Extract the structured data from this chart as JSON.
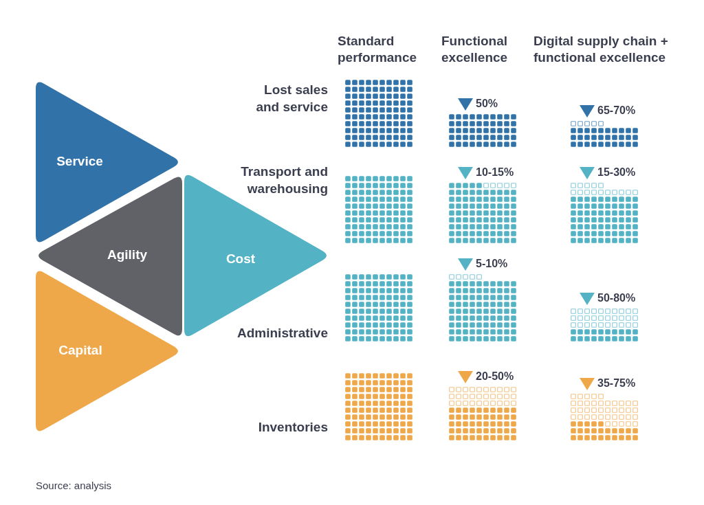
{
  "chart_data": {
    "type": "other",
    "categories": [
      "Lost sales and service",
      "Transport and warehousing",
      "Administrative",
      "Inventories"
    ],
    "series": [
      {
        "name": "Functional excellence",
        "values": [
          50,
          10,
          5,
          20
        ],
        "value_labels": [
          "50%",
          "10-",
          "5-",
          "20-"
        ],
        "colors": [
          "#3173a8",
          "#53b3c4",
          "#53b3c4",
          "#eea84a"
        ]
      },
      {
        "values": [
          null,
          15,
          10,
          50
        ],
        "value_labels": [
          null,
          "15%",
          "10%",
          "50%"
        ],
        "colors": [
          "#3173a8",
          "#53b3c4",
          "#53b3c4",
          "#eea84a"
        ]
      },
      {
        "name": "Digital supply chain + functional excellence",
        "values": [
          65,
          15,
          50,
          35
        ],
        "value_labels": [
          "65-",
          "15-",
          "50-",
          "35-"
        ],
        "colors": [
          "#3173a8",
          "#53b3c4",
          "#53b3c4",
          "#eea84a"
        ]
      },
      {
        "values": [
          70,
          30,
          80,
          75
        ],
        "value_labels": [
          "70%",
          "30%",
          "80%",
          "75%"
        ],
        "colors": [
          "#3173a8",
          "#53b3c4",
          "#53b3c4",
          "#eea84a"
        ]
      }
    ],
    "annotations": [
      "Standard performance",
      "Service",
      "Agility",
      "Cost",
      "Capital",
      "Source: analysis"
    ]
  }
}
